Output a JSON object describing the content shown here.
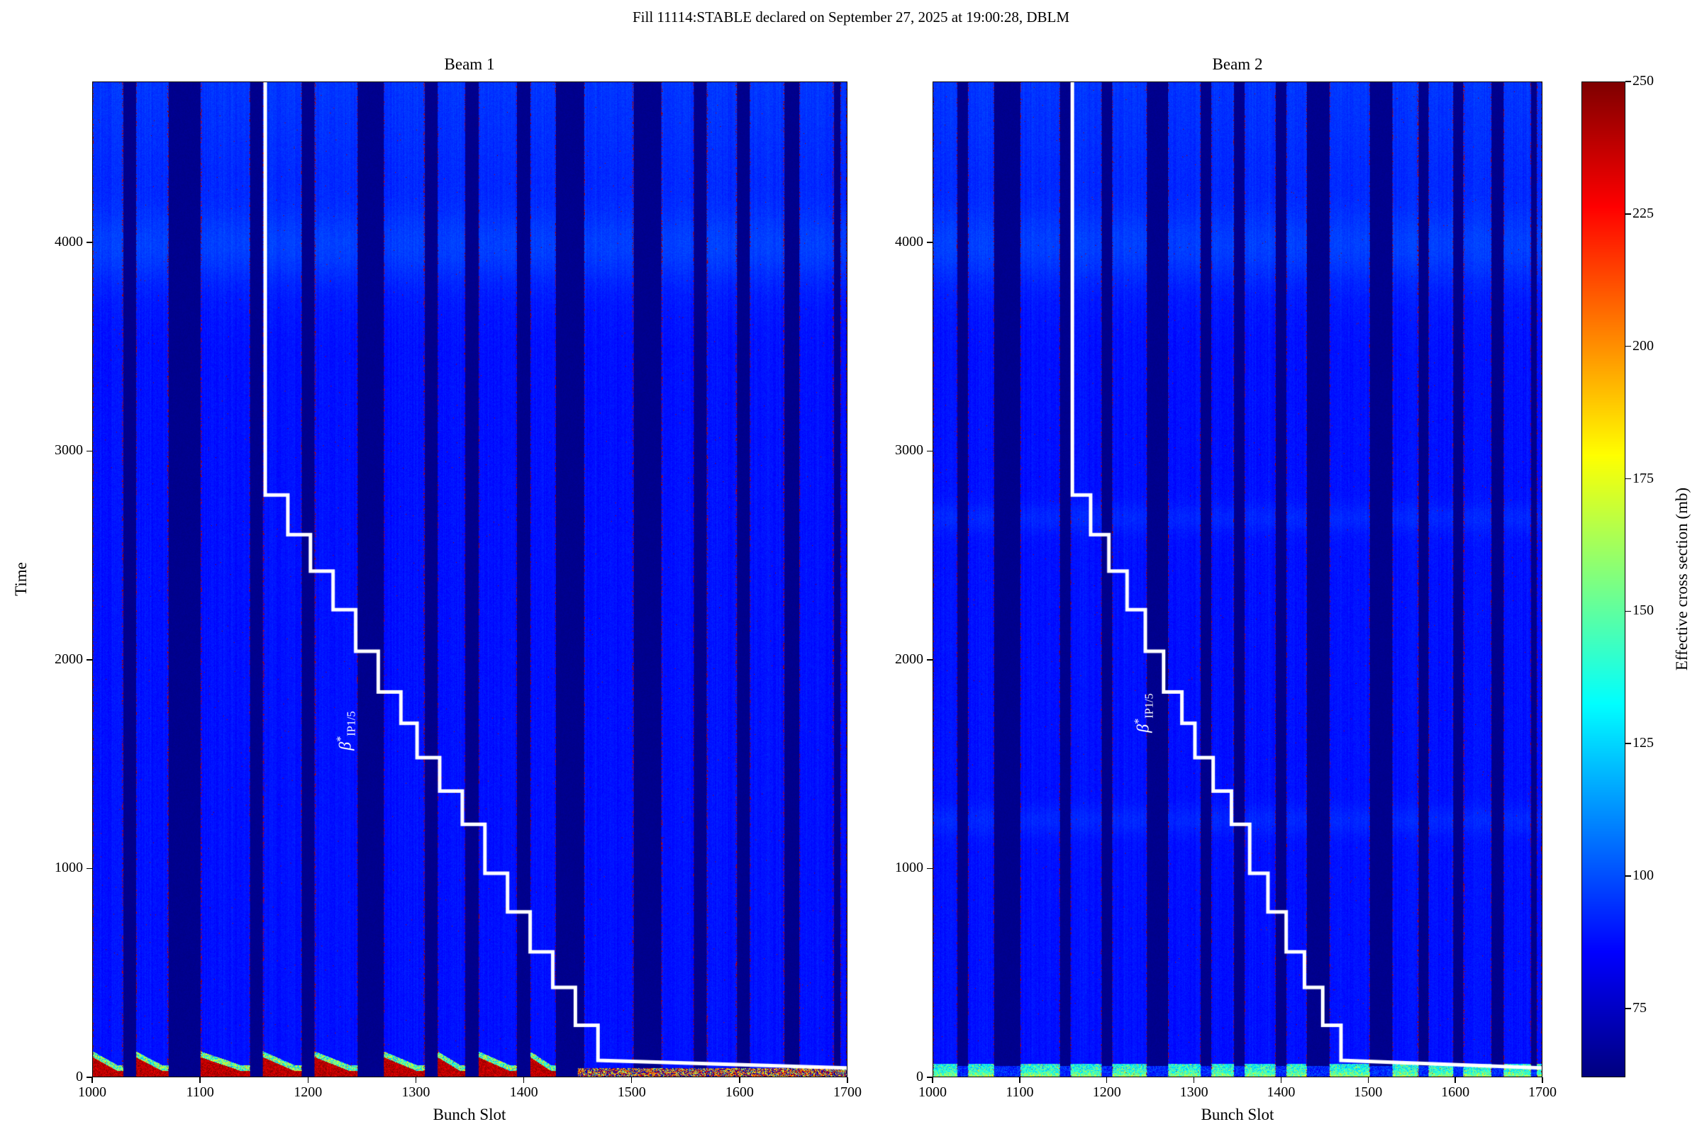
{
  "title": "Fill 11114:STABLE declared on September 27, 2025 at 19:00:28, DBLM",
  "chart_data": {
    "type": "heatmap",
    "subplots": [
      {
        "title": "Beam 1",
        "xlabel": "Bunch Slot",
        "ylabel": "Time",
        "xlim": [
          1000,
          1700
        ],
        "ylim": [
          0,
          4770
        ],
        "xticks": [
          1000,
          1100,
          1200,
          1300,
          1400,
          1500,
          1600,
          1700
        ],
        "yticks": [
          0,
          1000,
          2000,
          3000,
          4000
        ]
      },
      {
        "title": "Beam 2",
        "xlabel": "Bunch Slot",
        "ylabel": "",
        "xlim": [
          1000,
          1700
        ],
        "ylim": [
          0,
          4770
        ],
        "xticks": [
          1000,
          1100,
          1200,
          1300,
          1400,
          1500,
          1600,
          1700
        ],
        "yticks": [
          0,
          1000,
          2000,
          3000,
          4000
        ]
      }
    ],
    "colorbar": {
      "label": "Effective cross section (mb)",
      "vmin": 62,
      "vmax": 250,
      "ticks": [
        75,
        100,
        125,
        150,
        175,
        200,
        225,
        250
      ],
      "colormap": "jet"
    },
    "bunch_trains": [
      [
        1000,
        1028
      ],
      [
        1040,
        1070
      ],
      [
        1100,
        1146
      ],
      [
        1158,
        1194
      ],
      [
        1206,
        1246
      ],
      [
        1270,
        1308
      ],
      [
        1320,
        1346
      ],
      [
        1358,
        1394
      ],
      [
        1406,
        1430
      ],
      [
        1456,
        1502
      ],
      [
        1528,
        1558
      ],
      [
        1570,
        1598
      ],
      [
        1610,
        1642
      ],
      [
        1656,
        1688
      ],
      [
        1694,
        1700
      ]
    ],
    "beta_line": {
      "label": {
        "base": "β",
        "sup": "*",
        "sub": "IP1/5"
      },
      "points": [
        [
          1160,
          4770
        ],
        [
          1160,
          2790
        ],
        [
          1181,
          2790
        ],
        [
          1181,
          2600
        ],
        [
          1202,
          2600
        ],
        [
          1202,
          2425
        ],
        [
          1223,
          2425
        ],
        [
          1223,
          2240
        ],
        [
          1244,
          2240
        ],
        [
          1244,
          2040
        ],
        [
          1265,
          2040
        ],
        [
          1265,
          1845
        ],
        [
          1286,
          1845
        ],
        [
          1286,
          1695
        ],
        [
          1301,
          1695
        ],
        [
          1301,
          1530
        ],
        [
          1322,
          1530
        ],
        [
          1322,
          1370
        ],
        [
          1343,
          1370
        ],
        [
          1343,
          1210
        ],
        [
          1364,
          1210
        ],
        [
          1364,
          975
        ],
        [
          1385,
          975
        ],
        [
          1385,
          790
        ],
        [
          1406,
          790
        ],
        [
          1406,
          598
        ],
        [
          1427,
          598
        ],
        [
          1427,
          428
        ],
        [
          1448,
          428
        ],
        [
          1448,
          246
        ],
        [
          1469,
          246
        ],
        [
          1469,
          78
        ],
        [
          1700,
          42
        ]
      ]
    },
    "value_model": {
      "train_base_mb": 86,
      "gap_base_mb": 63,
      "beam1_bottom_hot_mb": 240,
      "beam1_tail_mottle_mb_range": [
        66,
        250
      ],
      "beam2_bottom_band_mb": 130,
      "edge_speckle_mb": 240
    }
  }
}
